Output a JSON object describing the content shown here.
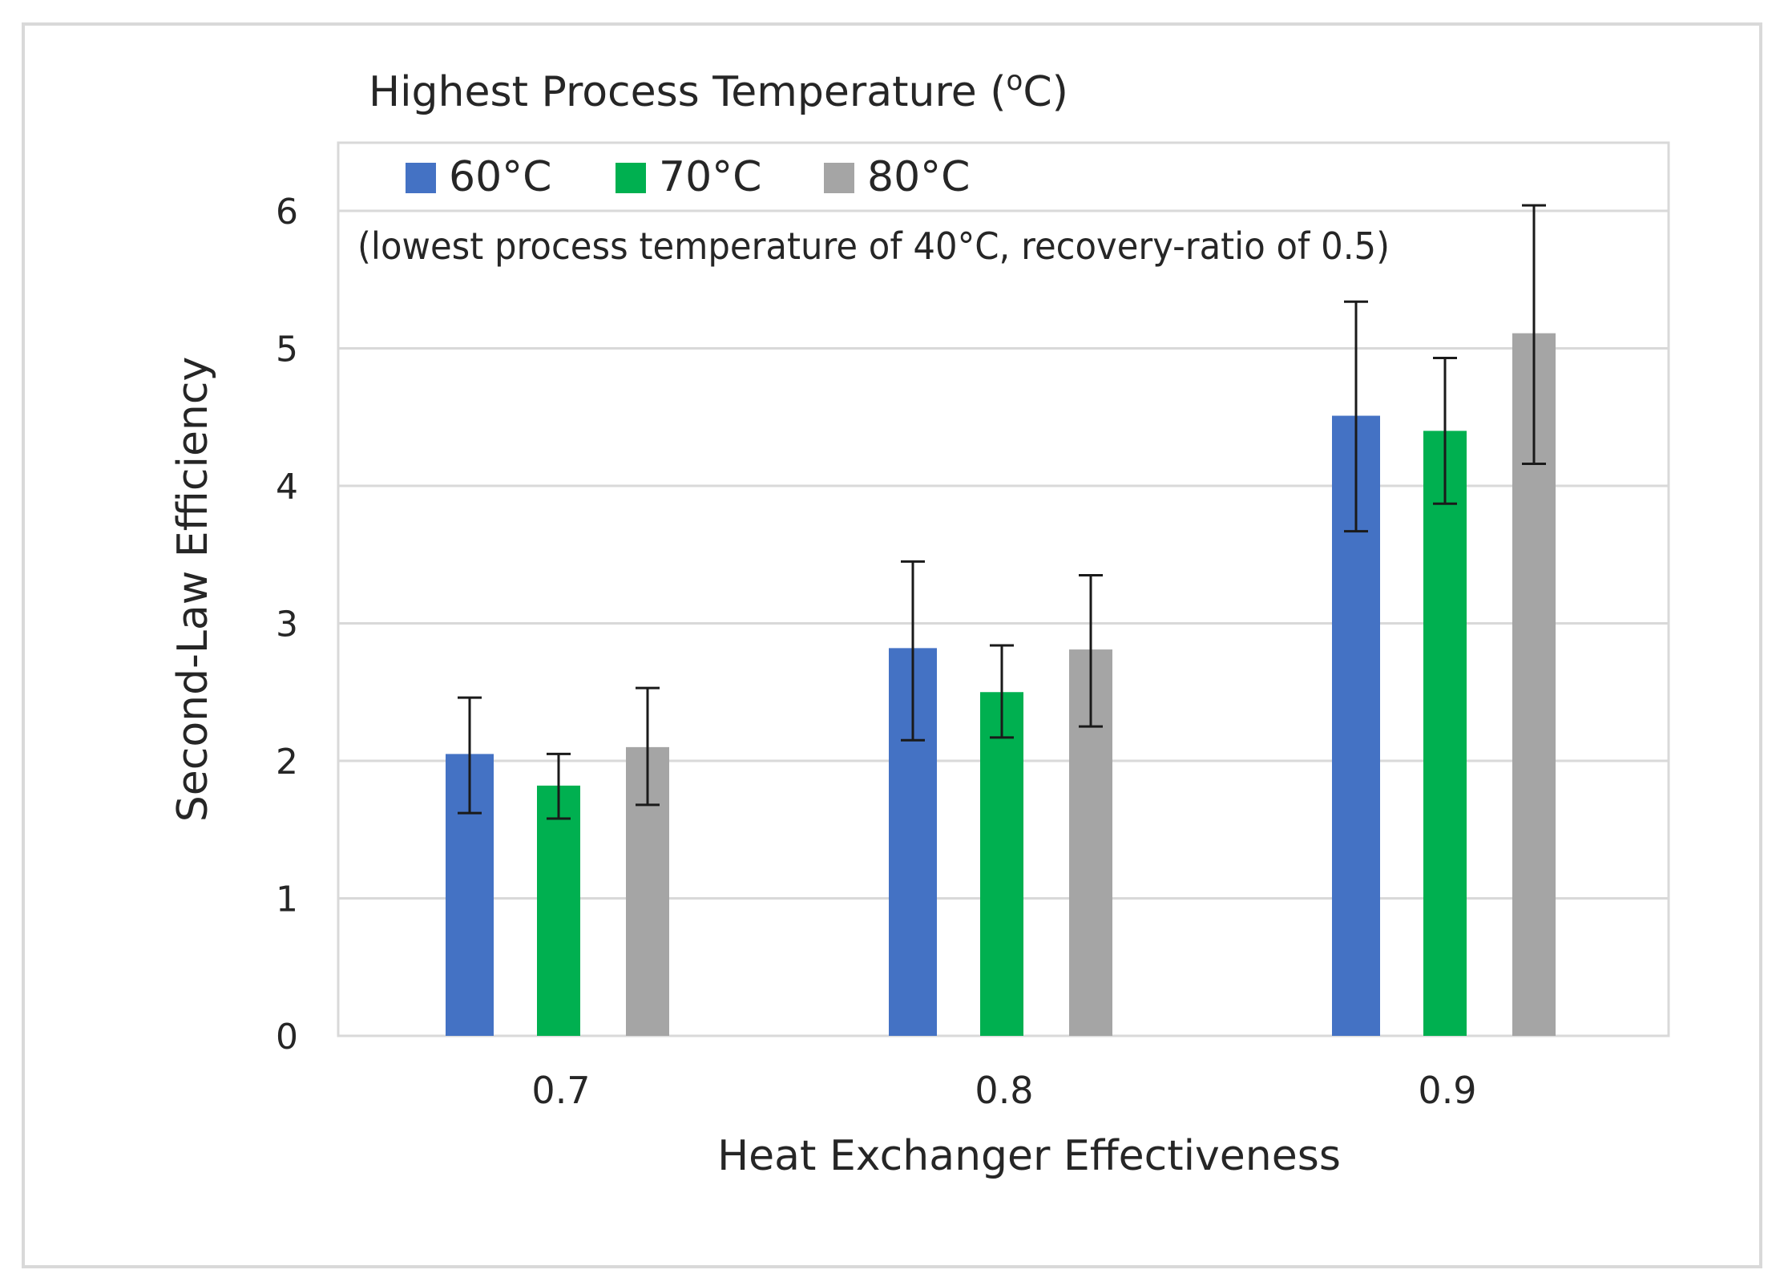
{
  "chart_data": {
    "type": "bar",
    "title": "Highest Process Temperature (",
    "title_sup": "o",
    "title_end": "C)",
    "annotation": "(lowest process temperature of 40°C, recovery-ratio of 0.5)",
    "xlabel": "Heat Exchanger Effectiveness",
    "ylabel": "Second-Law Efficiency",
    "categories": [
      "0.7",
      "0.8",
      "0.9"
    ],
    "ylim": [
      0,
      6.5
    ],
    "yticks": [
      "0",
      "1",
      "2",
      "3",
      "4",
      "5",
      "6"
    ],
    "grid": true,
    "legend_position": "top-left",
    "series": [
      {
        "name": "60°C",
        "color": "#4472c4",
        "values": [
          2.05,
          2.82,
          4.51
        ],
        "err_low": [
          1.62,
          2.15,
          3.67
        ],
        "err_high": [
          2.46,
          3.45,
          5.34
        ]
      },
      {
        "name": "70°C",
        "color": "#00b050",
        "values": [
          1.82,
          2.5,
          4.4
        ],
        "err_low": [
          1.58,
          2.17,
          3.87
        ],
        "err_high": [
          2.05,
          2.84,
          4.93
        ]
      },
      {
        "name": "80°C",
        "color": "#a5a5a5",
        "values": [
          2.1,
          2.81,
          5.11
        ],
        "err_low": [
          1.68,
          2.25,
          4.16
        ],
        "err_high": [
          2.53,
          3.35,
          6.04
        ]
      }
    ]
  }
}
